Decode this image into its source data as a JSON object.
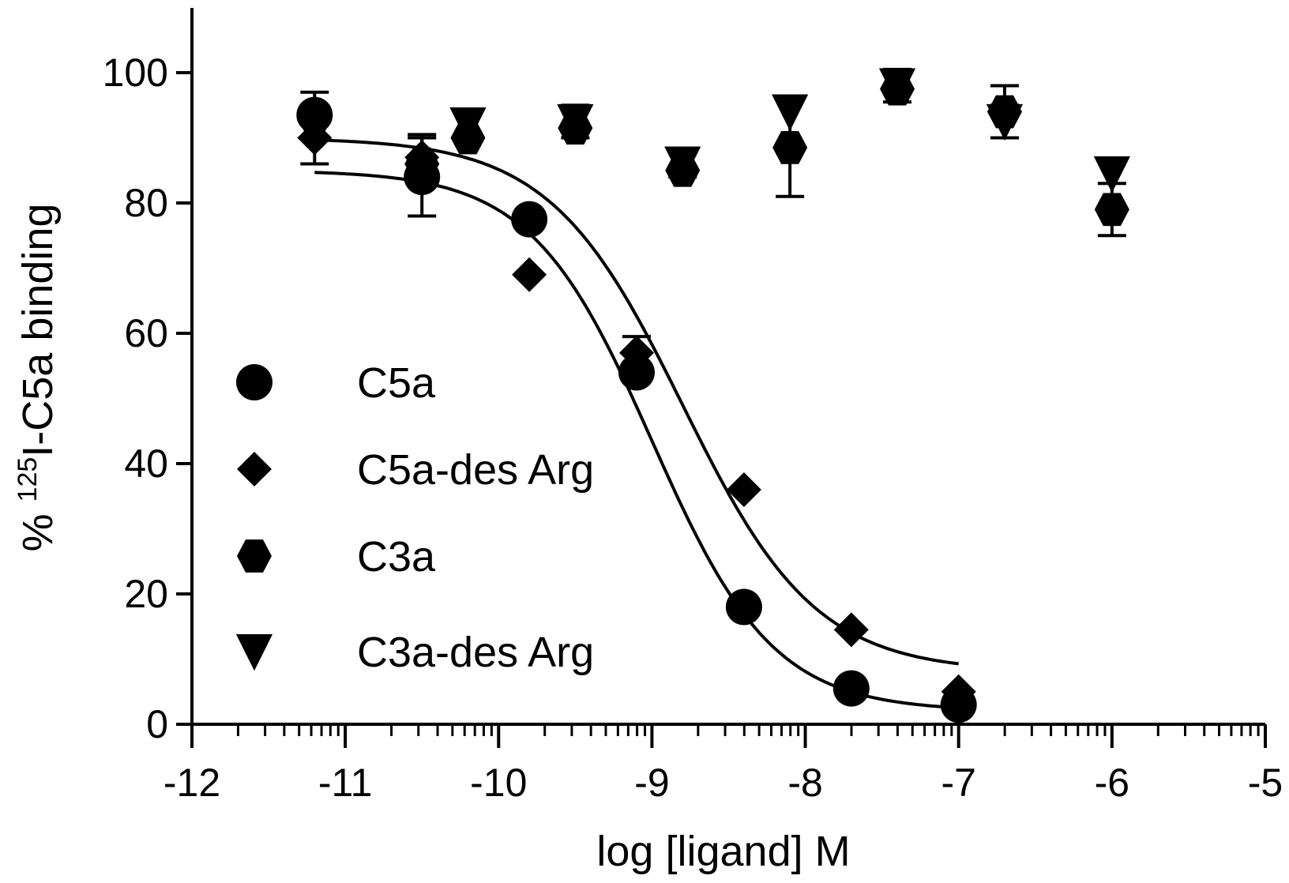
{
  "chart_data": {
    "type": "scatter",
    "xlabel": "log [ligand] M",
    "ylabel": {
      "prefix": "% ",
      "superscript": "125",
      "main": "I-C5a binding"
    },
    "xlim": [
      -12,
      -5
    ],
    "ylim": [
      0,
      110
    ],
    "xticks": [
      -12,
      -11,
      -10,
      -9,
      -8,
      -7,
      -6,
      -5
    ],
    "xtick_labels": [
      "-12",
      "-11",
      "-10",
      "-9",
      "-8",
      "-7",
      "-6",
      "-5"
    ],
    "yticks": [
      0,
      20,
      40,
      60,
      80,
      100
    ],
    "ytick_labels": [
      "0",
      "20",
      "40",
      "60",
      "80",
      "100"
    ],
    "grid": false,
    "legend_position": "left",
    "series": [
      {
        "name": "C5a",
        "marker": "circle",
        "x": [
          -11.2,
          -10.5,
          -9.8,
          -9.1,
          -8.4,
          -7.7,
          -7.0
        ],
        "y": [
          93.5,
          84,
          77.5,
          54,
          18,
          5.5,
          3
        ],
        "err": [
          3.5,
          6,
          0,
          0,
          0,
          0,
          0
        ],
        "fit": {
          "top": 85,
          "bottom": 2,
          "logEC50": -9.0,
          "hill": 1.1,
          "xrange": [
            -11.2,
            -7.0
          ]
        }
      },
      {
        "name": "C5a-des Arg",
        "marker": "diamond",
        "x": [
          -11.2,
          -10.5,
          -9.8,
          -9.1,
          -8.4,
          -7.7,
          -7.0
        ],
        "y": [
          90,
          87,
          69,
          57,
          36,
          14.5,
          5
        ],
        "err": [
          4,
          3.5,
          0,
          2.5,
          0,
          0,
          0
        ],
        "fit": {
          "top": 90,
          "bottom": 8,
          "logEC50": -8.8,
          "hill": 1.0,
          "xrange": [
            -11.2,
            -7.0
          ]
        }
      },
      {
        "name": "C3a",
        "marker": "hexagon",
        "x": [
          -11.2,
          -10.5,
          -10.2,
          -9.5,
          -8.8,
          -8.1,
          -7.4,
          -6.7,
          -6.0
        ],
        "y": [
          93,
          86,
          90,
          91.5,
          85,
          88.5,
          97.5,
          94,
          79
        ],
        "err": [
          0,
          0,
          0,
          0,
          0,
          7.5,
          0,
          4,
          4
        ],
        "fit": null
      },
      {
        "name": "C3a-des Arg",
        "marker": "triangle-down",
        "x": [
          -10.2,
          -9.5,
          -8.8,
          -8.1,
          -7.4,
          -6.7,
          -6.0
        ],
        "y": [
          92,
          92.5,
          86,
          94,
          98,
          92.5,
          84.5
        ],
        "err": [
          0,
          2.5,
          2,
          0,
          2.5,
          2.5,
          0
        ],
        "fit": null
      }
    ]
  }
}
